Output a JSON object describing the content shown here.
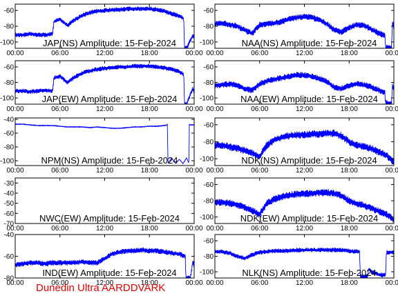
{
  "footer_text": "Dunedin Ultra AARDDVARK",
  "colors": {
    "trace": "#0000ff",
    "footer": "#dd0000",
    "axes": "#000000",
    "background": "#ffffff"
  },
  "chart_data": [
    {
      "type": "line",
      "title": "JAP(NS) Amplitude: 15-Feb-2024",
      "x_ticks": [
        "00:00",
        "06:00",
        "12:00",
        "18:00",
        "00:00"
      ],
      "xlim_hours": [
        0,
        24
      ],
      "ylim": [
        -108,
        -52
      ],
      "y_ticks": [
        -60,
        -80,
        -100
      ],
      "series": [
        {
          "x": [
            0,
            1,
            2,
            3,
            4,
            5,
            5.2,
            6,
            7,
            8,
            9,
            10,
            11,
            12,
            13,
            14,
            15,
            16,
            17,
            18,
            19,
            20,
            21,
            22,
            22.6,
            22.7,
            23,
            23.8,
            24
          ],
          "y": [
            -91,
            -91,
            -90,
            -91,
            -91,
            -90,
            -74,
            -71,
            -79,
            -72,
            -66,
            -63,
            -61,
            -60,
            -59,
            -59,
            -58,
            -58,
            -58,
            -58,
            -59,
            -61,
            -64,
            -67,
            -70,
            -108,
            -108,
            -92,
            -95
          ],
          "band": 6
        }
      ]
    },
    {
      "type": "line",
      "title": "NAA(NS) Amplitude: 15-Feb-2024",
      "x_ticks": [
        "00:00",
        "06:00",
        "12:00",
        "18:00",
        "00:00"
      ],
      "xlim_hours": [
        0,
        24
      ],
      "ylim": [
        -108,
        -52
      ],
      "y_ticks": [
        -60,
        -80,
        -100
      ],
      "series": [
        {
          "x": [
            0,
            1,
            2,
            3,
            4,
            5,
            6,
            7,
            8,
            9,
            10,
            11,
            12,
            13,
            14,
            15,
            16,
            17,
            18,
            19,
            20,
            21,
            22,
            22.8,
            22.9,
            23.7,
            23.8,
            24
          ],
          "y": [
            -77,
            -76,
            -78,
            -80,
            -85,
            -89,
            -78,
            -77,
            -76,
            -74,
            -71,
            -69,
            -68,
            -69,
            -72,
            -77,
            -85,
            -87,
            -82,
            -78,
            -79,
            -84,
            -89,
            -92,
            -107,
            -107,
            -76,
            -80
          ],
          "band": 8
        }
      ]
    },
    {
      "type": "line",
      "title": "JAP(EW) Amplitude: 15-Feb-2024",
      "x_ticks": [
        "00:00",
        "06:00",
        "12:00",
        "18:00",
        "00:00"
      ],
      "xlim_hours": [
        0,
        24
      ],
      "ylim": [
        -108,
        -52
      ],
      "y_ticks": [
        -60,
        -80,
        -100
      ],
      "series": [
        {
          "x": [
            0,
            1,
            2,
            3,
            4,
            5,
            5.2,
            6,
            7,
            8,
            9,
            10,
            11,
            12,
            13,
            14,
            15,
            16,
            17,
            18,
            19,
            20,
            21,
            22,
            22.6,
            22.7,
            23,
            23.8,
            24
          ],
          "y": [
            -91,
            -91,
            -92,
            -91,
            -90,
            -91,
            -74,
            -72,
            -80,
            -73,
            -68,
            -65,
            -63,
            -62,
            -61,
            -60,
            -60,
            -59,
            -59,
            -59,
            -60,
            -61,
            -63,
            -66,
            -70,
            -108,
            -108,
            -88,
            -92
          ],
          "band": 6
        }
      ]
    },
    {
      "type": "line",
      "title": "NAA(EW) Amplitude: 15-Feb-2024",
      "x_ticks": [
        "00:00",
        "06:00",
        "12:00",
        "18:00",
        "00:00"
      ],
      "xlim_hours": [
        0,
        24
      ],
      "ylim": [
        -108,
        -52
      ],
      "y_ticks": [
        -60,
        -80,
        -100
      ],
      "series": [
        {
          "x": [
            0,
            1,
            2,
            3,
            4,
            5,
            6,
            7,
            8,
            9,
            10,
            11,
            12,
            13,
            14,
            15,
            16,
            17,
            18,
            19,
            20,
            21,
            22,
            22.8,
            22.9,
            23.7,
            23.8,
            24
          ],
          "y": [
            -84,
            -83,
            -82,
            -84,
            -88,
            -90,
            -82,
            -78,
            -76,
            -74,
            -72,
            -70,
            -71,
            -72,
            -75,
            -79,
            -86,
            -88,
            -84,
            -82,
            -83,
            -86,
            -90,
            -93,
            -107,
            -107,
            -84,
            -88
          ],
          "band": 8
        }
      ]
    },
    {
      "type": "line",
      "title": "NPM(NS) Amplitude: 15-Feb-2024",
      "x_ticks": [
        "00:00",
        "06:00",
        "12:00",
        "18:00",
        "00:00"
      ],
      "xlim_hours": [
        0,
        24
      ],
      "ylim": [
        -107,
        -38
      ],
      "y_ticks": [
        -40,
        -60,
        -80,
        -100
      ],
      "series": [
        {
          "x": [
            0,
            1,
            2,
            3,
            4,
            5,
            6,
            7,
            8,
            9,
            10,
            11,
            12,
            13,
            14,
            15,
            16,
            17,
            18,
            19,
            20,
            20.4,
            20.5,
            21,
            21.5,
            22,
            22.5,
            23,
            23.3,
            23.35,
            24
          ],
          "y": [
            -47,
            -47,
            -48,
            -49,
            -49,
            -49,
            -50,
            -51,
            -51,
            -51,
            -52,
            -51,
            -52,
            -53,
            -53,
            -52,
            -51,
            -51,
            -50,
            -50,
            -49,
            -48,
            -104,
            -96,
            -104,
            -98,
            -104,
            -96,
            -104,
            -48,
            -48
          ],
          "band": 1
        }
      ]
    },
    {
      "type": "line",
      "title": "NDK(NS) Amplitude: 15-Feb-2024",
      "x_ticks": [
        "00:00",
        "06:00",
        "12:00",
        "18:00",
        "00:00"
      ],
      "xlim_hours": [
        0,
        24
      ],
      "ylim": [
        -108,
        -52
      ],
      "y_ticks": [
        -60,
        -80,
        -100
      ],
      "series": [
        {
          "x": [
            0,
            1,
            2,
            3,
            4,
            5,
            6,
            6.5,
            7,
            8,
            9,
            10,
            11,
            12,
            13,
            14,
            15,
            16,
            17,
            18,
            19,
            20,
            21,
            22,
            23,
            23.5,
            24
          ],
          "y": [
            -84,
            -84,
            -86,
            -88,
            -90,
            -93,
            -98,
            -90,
            -84,
            -78,
            -75,
            -73,
            -72,
            -72,
            -71,
            -71,
            -70,
            -70,
            -73,
            -80,
            -84,
            -86,
            -88,
            -92,
            -96,
            -100,
            -104
          ],
          "band": 9
        }
      ]
    },
    {
      "type": "line",
      "title": "NWC(EW) Amplitude: 15-Feb-2024",
      "x_ticks": [
        "00:00",
        "06:00",
        "12:00",
        "18:00",
        "00:00"
      ],
      "xlim_hours": [
        0,
        24
      ],
      "ylim": [
        -70,
        -25
      ],
      "y_ticks": [
        -30,
        -40,
        -50,
        -60,
        -70
      ],
      "series": []
    },
    {
      "type": "line",
      "title": "NDK(EW) Amplitude: 15-Feb-2024",
      "x_ticks": [
        "00:00",
        "06:00",
        "12:00",
        "18:00",
        "00:00"
      ],
      "xlim_hours": [
        0,
        24
      ],
      "ylim": [
        -108,
        -52
      ],
      "y_ticks": [
        -60,
        -80,
        -100
      ],
      "series": [
        {
          "x": [
            0,
            1,
            2,
            3,
            4,
            5,
            6,
            6.5,
            7,
            8,
            9,
            10,
            11,
            12,
            13,
            14,
            15,
            16,
            17,
            18,
            19,
            20,
            21,
            22,
            23,
            23.5,
            24
          ],
          "y": [
            -82,
            -82,
            -83,
            -85,
            -88,
            -92,
            -97,
            -90,
            -83,
            -78,
            -75,
            -73,
            -72,
            -71,
            -71,
            -70,
            -70,
            -71,
            -74,
            -80,
            -84,
            -86,
            -89,
            -93,
            -97,
            -100,
            -104
          ],
          "band": 9
        }
      ]
    },
    {
      "type": "line",
      "title": "IND(EW) Amplitude: 15-Feb-2024",
      "x_ticks": [
        "00:00",
        "06:00",
        "12:00",
        "18:00",
        "00:00"
      ],
      "xlim_hours": [
        0,
        24
      ],
      "ylim": [
        -80,
        -40
      ],
      "y_ticks": [
        -40,
        -60,
        -80
      ],
      "series": [
        {
          "x": [
            0,
            1,
            2,
            3,
            4,
            5,
            6,
            7,
            8,
            9,
            10,
            11,
            11.5,
            12,
            13,
            14,
            15,
            16,
            17,
            18,
            19,
            20,
            21,
            22,
            22.8,
            22.9,
            23.5,
            23.8,
            24
          ],
          "y": [
            -68,
            -67,
            -66,
            -66,
            -67,
            -66,
            -66,
            -66,
            -66,
            -65,
            -66,
            -66,
            -64,
            -62,
            -58,
            -56,
            -55,
            -55,
            -54,
            -55,
            -55,
            -56,
            -57,
            -58,
            -60,
            -80,
            -80,
            -66,
            -68
          ],
          "band": 5
        }
      ]
    },
    {
      "type": "line",
      "title": "NLK(NS) Amplitude: 15-Feb-2024",
      "x_ticks": [
        "00:00",
        "06:00",
        "12:00",
        "18:00",
        "00:00"
      ],
      "xlim_hours": [
        0,
        24
      ],
      "ylim": [
        -108,
        -52
      ],
      "y_ticks": [
        -60,
        -80,
        -100
      ],
      "series": [
        {
          "x": [
            0,
            1,
            2,
            3,
            4,
            5,
            6,
            7,
            8,
            9,
            10,
            11,
            12,
            13,
            14,
            15,
            16,
            17,
            18,
            19,
            19.4,
            19.5,
            20.5,
            20.6,
            21,
            22,
            22.9,
            23,
            24
          ],
          "y": [
            -74,
            -74,
            -76,
            -80,
            -83,
            -78,
            -75,
            -74,
            -73,
            -73,
            -73,
            -72,
            -72,
            -72,
            -72,
            -72,
            -72,
            -72,
            -73,
            -74,
            -74,
            -106,
            -106,
            -96,
            -100,
            -104,
            -104,
            -75,
            -75
          ],
          "band": 6
        }
      ]
    }
  ]
}
